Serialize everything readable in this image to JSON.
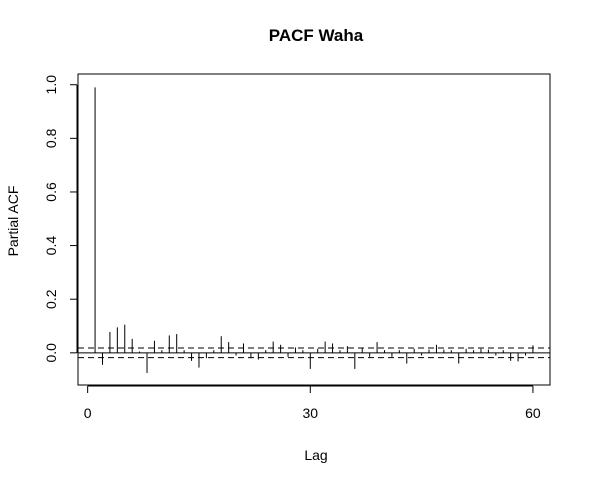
{
  "chart_data": {
    "type": "bar",
    "title": "PACF Waha",
    "xlabel": "Lag",
    "ylabel": "Partial ACF",
    "xlim": [
      -1.3,
      62.3
    ],
    "ylim": [
      -0.12,
      1.04
    ],
    "x_ticks": [
      0,
      30,
      60
    ],
    "y_ticks": [
      0.0,
      0.2,
      0.4,
      0.6,
      0.8,
      1.0
    ],
    "x_tick_labels": [
      "0",
      "30",
      "60"
    ],
    "y_tick_labels": [
      "0.0",
      "0.2",
      "0.4",
      "0.6",
      "0.8",
      "1.0"
    ],
    "confidence_bound": 0.018,
    "grid": false,
    "lags": [
      1,
      2,
      3,
      4,
      5,
      6,
      7,
      8,
      9,
      10,
      11,
      12,
      13,
      14,
      15,
      16,
      17,
      18,
      19,
      20,
      21,
      22,
      23,
      24,
      25,
      26,
      27,
      28,
      29,
      30,
      31,
      32,
      33,
      34,
      35,
      36,
      37,
      38,
      39,
      40,
      41,
      42,
      43,
      44,
      45,
      46,
      47,
      48,
      49,
      50,
      51,
      52,
      53,
      54,
      55,
      56,
      57,
      58,
      59,
      60
    ],
    "values": [
      0.99,
      -0.045,
      0.078,
      0.095,
      0.105,
      0.052,
      0.005,
      -0.075,
      0.045,
      0.01,
      0.065,
      0.07,
      0.01,
      -0.03,
      -0.055,
      -0.02,
      0.01,
      0.062,
      0.04,
      -0.01,
      0.035,
      -0.02,
      -0.025,
      0.01,
      0.042,
      0.03,
      -0.015,
      0.02,
      0.01,
      -0.06,
      0.015,
      0.042,
      0.035,
      0.01,
      0.025,
      -0.06,
      0.02,
      -0.015,
      0.04,
      0.01,
      -0.015,
      0.01,
      -0.04,
      0.015,
      -0.01,
      0.012,
      0.03,
      0.012,
      0.01,
      -0.04,
      0.015,
      0.01,
      0.015,
      0.012,
      -0.01,
      0.01,
      -0.03,
      -0.032,
      -0.01,
      0.028
    ]
  }
}
